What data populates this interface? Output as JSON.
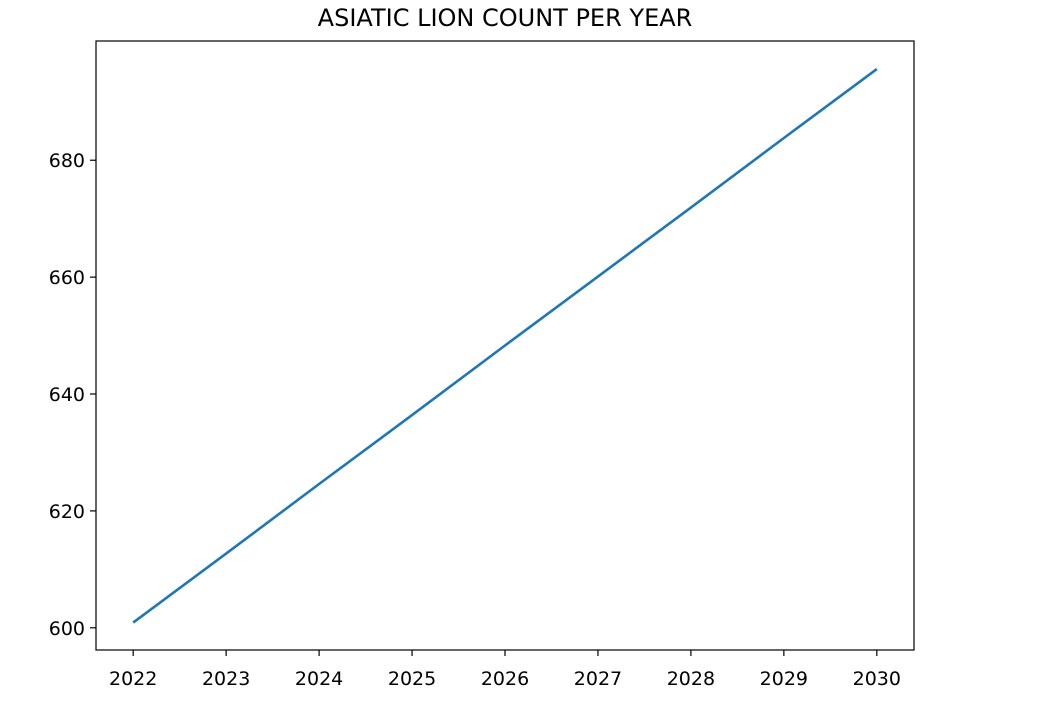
{
  "chart_data": {
    "type": "line",
    "title": "ASIATIC LION COUNT PER YEAR",
    "xlabel": "",
    "ylabel": "",
    "x": [
      2022,
      2023,
      2024,
      2025,
      2026,
      2027,
      2028,
      2029,
      2030
    ],
    "series": [
      {
        "values": [
          600.9,
          612.7,
          624.6,
          636.4,
          648.3,
          660.1,
          671.9,
          683.8,
          695.6
        ],
        "color": "#1f77b4"
      }
    ],
    "xticks": [
      "2022",
      "2023",
      "2024",
      "2025",
      "2026",
      "2027",
      "2028",
      "2029",
      "2030"
    ],
    "yticks": [
      "600",
      "620",
      "640",
      "660",
      "680"
    ],
    "xlim": [
      2021.6,
      2030.4
    ],
    "ylim": [
      596.2,
      700.4
    ],
    "grid": false,
    "legend": "none"
  }
}
